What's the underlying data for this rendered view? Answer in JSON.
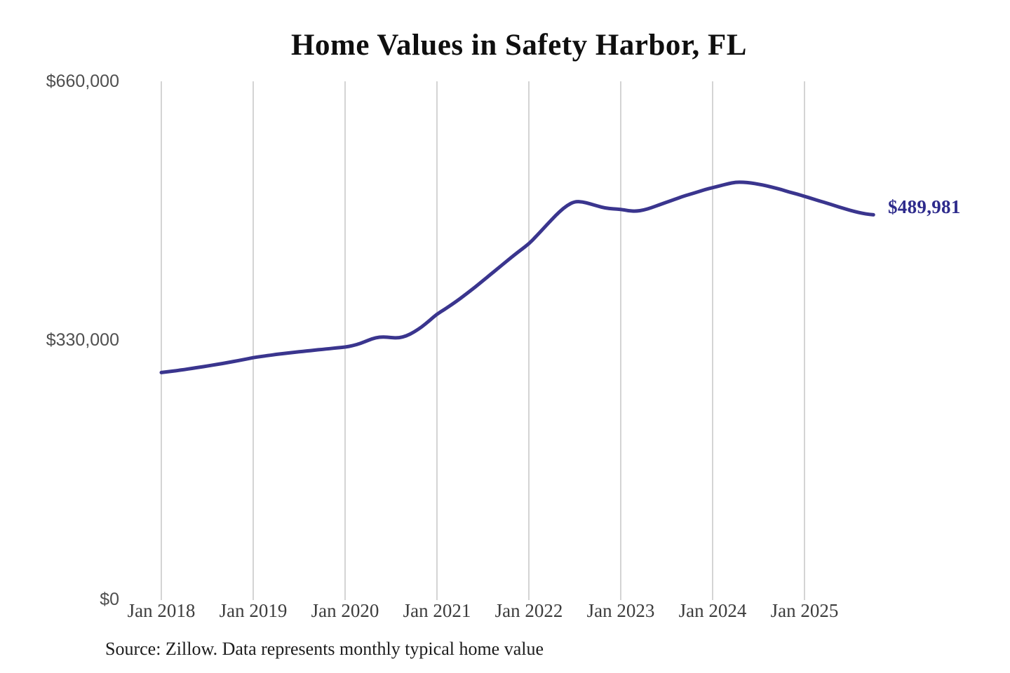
{
  "chart_data": {
    "type": "line",
    "title": "Home Values in Safety Harbor, FL",
    "source_note": "Source: Zillow. Data represents monthly typical home value",
    "x_tick_labels": [
      "Jan 2018",
      "Jan 2019",
      "Jan 2020",
      "Jan 2021",
      "Jan 2022",
      "Jan 2023",
      "Jan 2024",
      "Jan 2025"
    ],
    "y_tick_labels": [
      "$660,000",
      "$330,000",
      "$0"
    ],
    "y_ticks": [
      660000,
      330000,
      0
    ],
    "ylim": [
      0,
      660000
    ],
    "x_range": [
      "Jan 2018",
      "Oct 2025"
    ],
    "frequency": "monthly",
    "grid": "vertical-only",
    "legend": "none",
    "line_color": "#3a358e",
    "end_label": "$489,981",
    "end_value": 489981,
    "series": [
      {
        "name": "Typical home value",
        "values": [
          289000,
          290200,
          291400,
          292800,
          294300,
          295800,
          297300,
          298900,
          300500,
          302300,
          304100,
          306000,
          308000,
          309400,
          310800,
          312100,
          313300,
          314400,
          315500,
          316500,
          317500,
          318500,
          319500,
          320500,
          321500,
          323200,
          326000,
          330000,
          333500,
          334500,
          333500,
          333000,
          335500,
          340500,
          347000,
          355000,
          363500,
          369500,
          376000,
          383000,
          390500,
          398000,
          406000,
          414000,
          422000,
          430000,
          438000,
          445500,
          453000,
          463000,
          473500,
          484000,
          494000,
          502000,
          507000,
          506500,
          504000,
          501000,
          498500,
          497500,
          497000,
          495000,
          494500,
          496000,
          499000,
          502500,
          506000,
          509500,
          513000,
          516000,
          519000,
          522000,
          524500,
          527000,
          529500,
          531500,
          531500,
          530500,
          529000,
          527000,
          524500,
          522000,
          519000,
          516500,
          513500,
          510500,
          507500,
          504500,
          501500,
          498500,
          495500,
          493000,
          491000,
          489981
        ]
      }
    ]
  }
}
